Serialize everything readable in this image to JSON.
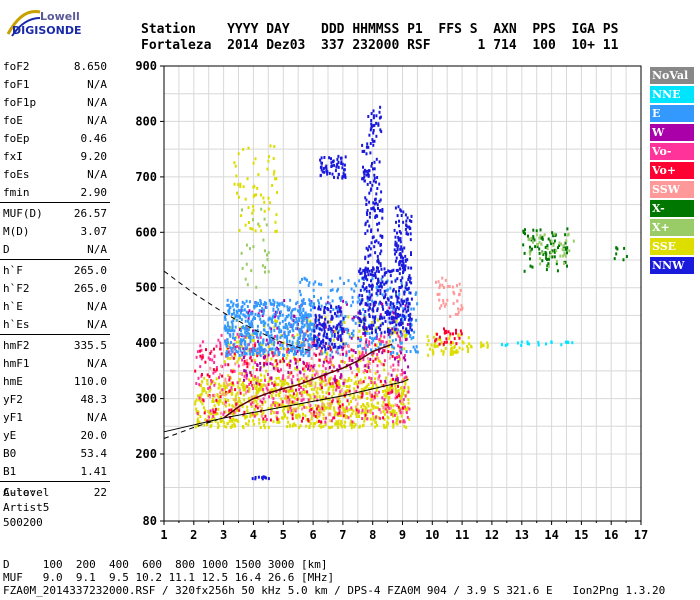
{
  "logo": {
    "line1": "Lowell",
    "line2": "DIGISONDE"
  },
  "header": {
    "line1": "Station    YYYY DAY    DDD HHMMSS P1  FFS S  AXN  PPS  IGA PS",
    "line2": "Fortaleza  2014 Dez03  337 232000 RSF      1 714  100  10+ 11"
  },
  "params": {
    "group1": [
      {
        "label": "foF2",
        "value": "8.650"
      },
      {
        "label": "foF1",
        "value": "N/A"
      },
      {
        "label": "foF1p",
        "value": "N/A"
      },
      {
        "label": "foE",
        "value": "N/A"
      },
      {
        "label": "foEp",
        "value": "0.46"
      },
      {
        "label": "fxI",
        "value": "9.20"
      },
      {
        "label": "foEs",
        "value": "N/A"
      },
      {
        "label": "fmin",
        "value": "2.90"
      }
    ],
    "group2": [
      {
        "label": "MUF(D)",
        "value": "26.57"
      },
      {
        "label": "M(D)",
        "value": "3.07"
      },
      {
        "label": "D",
        "value": "N/A"
      }
    ],
    "group3": [
      {
        "label": "h`F",
        "value": "265.0"
      },
      {
        "label": "h`F2",
        "value": "265.0"
      },
      {
        "label": "h`E",
        "value": "N/A"
      },
      {
        "label": "h`Es",
        "value": "N/A"
      }
    ],
    "group4": [
      {
        "label": "hmF2",
        "value": "335.5"
      },
      {
        "label": "hmF1",
        "value": "N/A"
      },
      {
        "label": "hmE",
        "value": "110.0"
      },
      {
        "label": "yF2",
        "value": "48.3"
      },
      {
        "label": "yF1",
        "value": "N/A"
      },
      {
        "label": "yE",
        "value": "20.0"
      },
      {
        "label": "B0",
        "value": "53.4"
      },
      {
        "label": "B1",
        "value": "1.41"
      }
    ],
    "group5": [
      {
        "label": "C-level",
        "value": "22"
      }
    ]
  },
  "auto": {
    "line1": "Auto:",
    "line2": "Artist5",
    "line3": "500200"
  },
  "legend": [
    {
      "label": "NoVal",
      "color": "#888888"
    },
    {
      "label": "NNE",
      "color": "#00e5ff"
    },
    {
      "label": "E",
      "color": "#3399ff"
    },
    {
      "label": "W",
      "color": "#aa00aa"
    },
    {
      "label": "Vo-",
      "color": "#ff3399"
    },
    {
      "label": "Vo+",
      "color": "#ff0033"
    },
    {
      "label": "SSW",
      "color": "#ff9999"
    },
    {
      "label": "X-",
      "color": "#007700"
    },
    {
      "label": "X+",
      "color": "#99cc66"
    },
    {
      "label": "SSE",
      "color": "#dddd00"
    },
    {
      "label": "NNW",
      "color": "#1a1add"
    }
  ],
  "footer": {
    "line1": "D     100  200  400  600  800 1000 1500 3000 [km]",
    "line2": "MUF   9.0  9.1  9.5 10.2 11.1 12.5 16.4 26.6 [MHz]",
    "line3": "FZA0M_2014337232000.RSF / 320fx256h 50 kHz 5.0 km / DPS-4 FZA0M 904 / 3.9 S 321.6 E   Ion2Png 1.3.20"
  },
  "chart_data": {
    "type": "scatter",
    "xlim": [
      1,
      17
    ],
    "ylim": [
      80,
      900
    ],
    "xticks": [
      "1",
      "2",
      "3",
      "4",
      "5",
      "6",
      "7",
      "8",
      "9",
      "10",
      "11",
      "12",
      "13",
      "14",
      "15",
      "16",
      "17"
    ],
    "yticks": [
      "900",
      "800",
      "700",
      "600",
      "500",
      "400",
      "300",
      "200",
      "80"
    ],
    "grid": "on",
    "clusters": [
      {
        "series": "SSE",
        "x": [
          2.0,
          9.2
        ],
        "y": [
          250,
          340
        ],
        "n": 800
      },
      {
        "series": "SSE",
        "x": [
          3.0,
          9.2
        ],
        "y": [
          300,
          450
        ],
        "n": 300
      },
      {
        "series": "Vo-",
        "x": [
          2.0,
          9.2
        ],
        "y": [
          260,
          420
        ],
        "n": 350
      },
      {
        "series": "Vo+",
        "x": [
          2.0,
          9.0
        ],
        "y": [
          260,
          400
        ],
        "n": 200
      },
      {
        "series": "SSW",
        "x": [
          2.5,
          9.0
        ],
        "y": [
          270,
          400
        ],
        "n": 150
      },
      {
        "series": "W",
        "x": [
          3.5,
          9.2
        ],
        "y": [
          330,
          480
        ],
        "n": 200
      },
      {
        "series": "E",
        "x": [
          3.0,
          6.0
        ],
        "y": [
          380,
          480
        ],
        "n": 500
      },
      {
        "series": "E",
        "x": [
          5.5,
          9.5
        ],
        "y": [
          380,
          520
        ],
        "n": 250
      },
      {
        "series": "NNW",
        "x": [
          6.0,
          7.0
        ],
        "y": [
          390,
          470
        ],
        "n": 120
      },
      {
        "series": "NNW",
        "x": [
          7.5,
          9.3
        ],
        "y": [
          420,
          540
        ],
        "n": 300
      },
      {
        "series": "NNW",
        "x": [
          7.7,
          8.3
        ],
        "y": [
          540,
          680
        ],
        "n": 80
      },
      {
        "series": "NNW",
        "x": [
          8.7,
          9.3
        ],
        "y": [
          540,
          650
        ],
        "n": 80
      },
      {
        "series": "NNW",
        "x": [
          6.2,
          7.1
        ],
        "y": [
          700,
          740
        ],
        "n": 60
      },
      {
        "series": "NNW",
        "x": [
          7.6,
          8.2
        ],
        "y": [
          680,
          780
        ],
        "n": 50
      },
      {
        "series": "NNW",
        "x": [
          7.8,
          8.3
        ],
        "y": [
          780,
          830
        ],
        "n": 25
      },
      {
        "series": "NNW",
        "x": [
          3.5,
          4.5
        ],
        "y": [
          158,
          162
        ],
        "n": 10
      },
      {
        "series": "SSE",
        "x": [
          3.3,
          4.8
        ],
        "y": [
          600,
          760
        ],
        "n": 60
      },
      {
        "series": "X+",
        "x": [
          3.5,
          4.5
        ],
        "y": [
          500,
          650
        ],
        "n": 25
      },
      {
        "series": "SSE",
        "x": [
          9.8,
          11.3
        ],
        "y": [
          380,
          420
        ],
        "n": 60
      },
      {
        "series": "SSW",
        "x": [
          10.0,
          11.0
        ],
        "y": [
          450,
          520
        ],
        "n": 40
      },
      {
        "series": "Vo+",
        "x": [
          10.0,
          11.0
        ],
        "y": [
          400,
          430
        ],
        "n": 25
      },
      {
        "series": "X-",
        "x": [
          13.0,
          14.5
        ],
        "y": [
          530,
          610
        ],
        "n": 80
      },
      {
        "series": "X+",
        "x": [
          13.2,
          14.8
        ],
        "y": [
          540,
          600
        ],
        "n": 40
      },
      {
        "series": "X-",
        "x": [
          16.0,
          16.5
        ],
        "y": [
          550,
          580
        ],
        "n": 8
      },
      {
        "series": "NNE",
        "x": [
          12.3,
          14.8
        ],
        "y": [
          398,
          405
        ],
        "n": 20
      },
      {
        "series": "SSE",
        "x": [
          11.5,
          12.0
        ],
        "y": [
          395,
          405
        ],
        "n": 8
      }
    ],
    "profile_curve": {
      "x": [
        3.0,
        3.5,
        4.0,
        4.5,
        5.0,
        5.5,
        6.0,
        6.5,
        7.0,
        7.5,
        8.0,
        8.5,
        8.65
      ],
      "y": [
        265,
        285,
        300,
        310,
        318,
        325,
        335,
        345,
        355,
        368,
        385,
        395,
        398
      ]
    },
    "trace_lower": {
      "x": [
        1.0,
        3.0,
        5.0,
        7.0,
        9.0,
        9.2
      ],
      "y": [
        240,
        265,
        285,
        305,
        330,
        335
      ]
    },
    "dashed_lower": {
      "x": [
        1.0,
        2.0,
        2.8
      ],
      "y": [
        228,
        248,
        262
      ]
    },
    "dashed_upper": {
      "x": [
        1.0,
        2.0,
        3.0,
        4.0,
        5.0,
        6.0
      ],
      "y": [
        530,
        490,
        455,
        425,
        400,
        385
      ]
    }
  }
}
